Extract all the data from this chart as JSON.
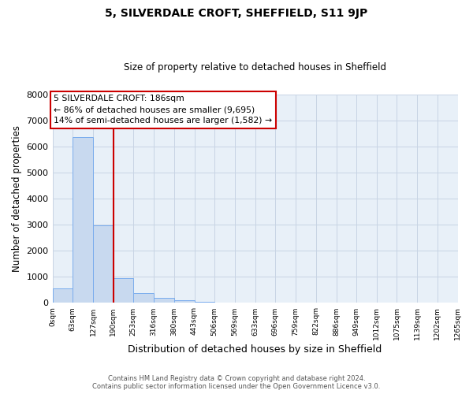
{
  "title": "5, SILVERDALE CROFT, SHEFFIELD, S11 9JP",
  "subtitle": "Size of property relative to detached houses in Sheffield",
  "xlabel": "Distribution of detached houses by size in Sheffield",
  "ylabel": "Number of detached properties",
  "bar_values": [
    550,
    6350,
    2980,
    950,
    380,
    200,
    100,
    50,
    0,
    0,
    0,
    0,
    0,
    0,
    0,
    0,
    0,
    0,
    0,
    0
  ],
  "bin_edges": [
    0,
    63,
    127,
    190,
    253,
    316,
    380,
    443,
    506,
    569,
    633,
    696,
    759,
    822,
    886,
    949,
    1012,
    1075,
    1139,
    1202,
    1265
  ],
  "tick_labels": [
    "0sqm",
    "63sqm",
    "127sqm",
    "190sqm",
    "253sqm",
    "316sqm",
    "380sqm",
    "443sqm",
    "506sqm",
    "569sqm",
    "633sqm",
    "696sqm",
    "759sqm",
    "822sqm",
    "886sqm",
    "949sqm",
    "1012sqm",
    "1075sqm",
    "1139sqm",
    "1202sqm",
    "1265sqm"
  ],
  "bar_color": "#c8d9ef",
  "bar_edge_color": "#7aaced",
  "ylim": [
    0,
    8000
  ],
  "yticks": [
    0,
    1000,
    2000,
    3000,
    4000,
    5000,
    6000,
    7000,
    8000
  ],
  "vline_x": 190,
  "vline_color": "#cc0000",
  "annotation_line1": "5 SILVERDALE CROFT: 186sqm",
  "annotation_line2": "← 86% of detached houses are smaller (9,695)",
  "annotation_line3": "14% of semi-detached houses are larger (1,582) →",
  "annotation_box_color": "#cc0000",
  "footer_line1": "Contains HM Land Registry data © Crown copyright and database right 2024.",
  "footer_line2": "Contains public sector information licensed under the Open Government Licence v3.0.",
  "background_color": "#ffffff",
  "plot_bg_color": "#e8f0f8",
  "grid_color": "#c8d4e4"
}
